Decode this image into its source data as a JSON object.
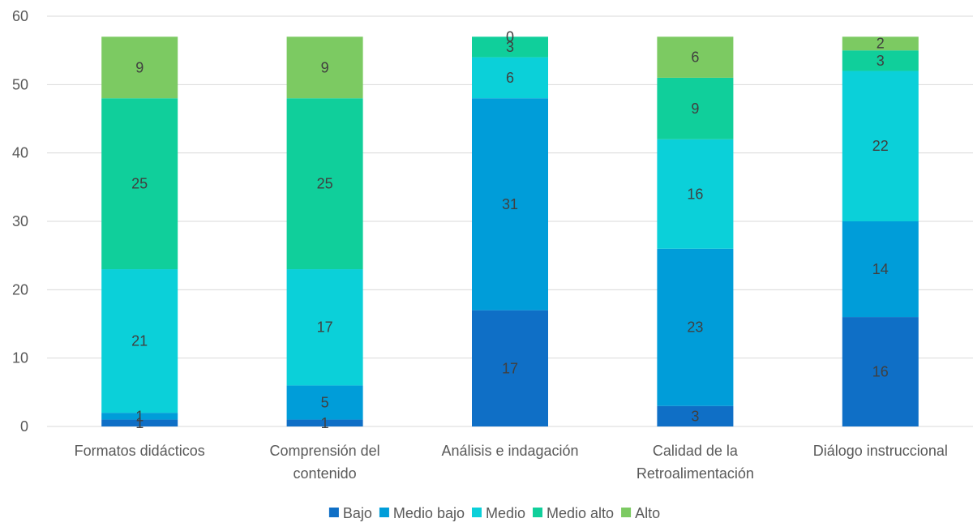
{
  "chart_data": {
    "type": "bar",
    "stacked": true,
    "title": "",
    "xlabel": "",
    "ylabel": "",
    "ylim": [
      0,
      60
    ],
    "yticks": [
      0,
      10,
      20,
      30,
      40,
      50,
      60
    ],
    "grid": true,
    "legend_position": "bottom",
    "categories": [
      [
        "Formatos didácticos"
      ],
      [
        "Comprensión del",
        "contenido"
      ],
      [
        "Análisis e indagación"
      ],
      [
        "Calidad de la",
        "Retroalimentación"
      ],
      [
        "Diálogo instruccional"
      ]
    ],
    "series": [
      {
        "name": "Bajo",
        "color": "#0F6FC6",
        "values": [
          1,
          1,
          17,
          3,
          16
        ]
      },
      {
        "name": "Medio bajo",
        "color": "#009DD9",
        "values": [
          1,
          5,
          31,
          23,
          14
        ]
      },
      {
        "name": "Medio",
        "color": "#0BD0D9",
        "values": [
          21,
          17,
          6,
          16,
          22
        ]
      },
      {
        "name": "Medio alto",
        "color": "#10CF9B",
        "values": [
          25,
          25,
          3,
          9,
          3
        ]
      },
      {
        "name": "Alto",
        "color": "#7CCA62",
        "values": [
          9,
          9,
          0,
          6,
          2
        ]
      }
    ]
  }
}
